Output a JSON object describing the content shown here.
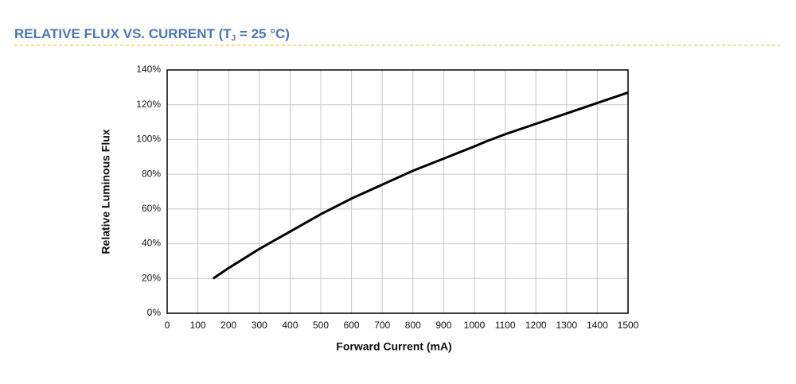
{
  "chart_data": {
    "type": "line",
    "title": "RELATIVE FLUX VS. CURRENT (T",
    "title_subscript": "J",
    "title_suffix": " = 25 °C)",
    "x_label": "Forward Current (mA)",
    "y_label": "Relative Luminous Flux",
    "x": [
      150,
      200,
      300,
      400,
      500,
      600,
      700,
      800,
      900,
      1000,
      1040,
      1100,
      1200,
      1300,
      1400,
      1500
    ],
    "series": [
      {
        "name": "Relative Luminous Flux",
        "color": "#000000",
        "values": [
          20,
          26,
          37,
          47,
          57,
          66,
          74,
          82,
          89,
          96,
          99,
          103,
          109,
          115,
          121,
          127
        ]
      }
    ],
    "xlim": [
      0,
      1500
    ],
    "xticks": [
      0,
      100,
      200,
      300,
      400,
      500,
      600,
      700,
      800,
      900,
      1000,
      1100,
      1200,
      1300,
      1400,
      1500
    ],
    "ylim": [
      0,
      140
    ],
    "yticks": [
      {
        "value": 0,
        "label": "0%"
      },
      {
        "value": 20,
        "label": "20%"
      },
      {
        "value": 40,
        "label": "40%"
      },
      {
        "value": 60,
        "label": "60%"
      },
      {
        "value": 80,
        "label": "80%"
      },
      {
        "value": 100,
        "label": "100%"
      },
      {
        "value": 120,
        "label": "120%"
      },
      {
        "value": 140,
        "label": "140%"
      }
    ],
    "grid": true
  }
}
